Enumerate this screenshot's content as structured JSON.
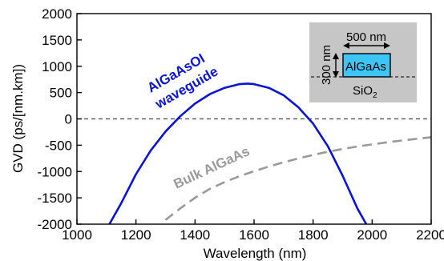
{
  "chart_data": {
    "type": "line",
    "title": "",
    "xlabel": "Wavelength (nm)",
    "ylabel": "GVD (ps/[nm.km])",
    "xlim": [
      1000,
      2200
    ],
    "ylim": [
      -2000,
      2000
    ],
    "x_ticks": [
      1000,
      1200,
      1400,
      1600,
      1800,
      2000,
      2200
    ],
    "y_ticks": [
      -2000,
      -1500,
      -1000,
      -500,
      0,
      500,
      1000,
      1500,
      2000
    ],
    "reference_line": {
      "y": 0,
      "style": "dashed",
      "color": "#444444"
    },
    "series": [
      {
        "name": "AlGaAsOI waveguide",
        "color": "#0a14d6",
        "style": "solid",
        "x": [
          1110,
          1150,
          1200,
          1250,
          1300,
          1350,
          1400,
          1450,
          1500,
          1550,
          1580,
          1600,
          1650,
          1700,
          1750,
          1800,
          1850,
          1900,
          1950,
          1980
        ],
        "y": [
          -2000,
          -1600,
          -1050,
          -600,
          -240,
          50,
          290,
          470,
          590,
          660,
          670,
          660,
          590,
          450,
          220,
          -90,
          -520,
          -1080,
          -1700,
          -2000
        ]
      },
      {
        "name": "Bulk AlGaAs",
        "color": "#9a9a9a",
        "style": "dashed",
        "x": [
          1300,
          1350,
          1400,
          1450,
          1500,
          1550,
          1600,
          1650,
          1700,
          1750,
          1800,
          1850,
          1900,
          1950,
          2000,
          2050,
          2100,
          2150,
          2200
        ],
        "y": [
          -1920,
          -1700,
          -1500,
          -1330,
          -1200,
          -1090,
          -995,
          -905,
          -825,
          -752,
          -685,
          -625,
          -572,
          -525,
          -483,
          -445,
          -410,
          -378,
          -348
        ]
      }
    ],
    "annotations": {
      "blue_line1": "AlGaAsOI",
      "blue_line2": "waveguide",
      "gray": "Bulk AlGaAs"
    },
    "inset": {
      "width_label": "500 nm",
      "height_label": "300 nm",
      "core_label": "AlGaAs",
      "substrate_label": "SiO",
      "substrate_subscript": "2",
      "core_color": "#3dc6f5",
      "background_color": "#c6c6c6"
    }
  }
}
